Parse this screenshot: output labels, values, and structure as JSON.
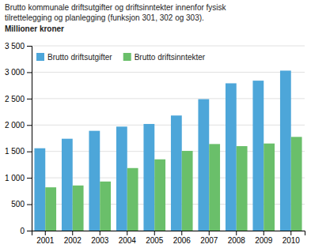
{
  "chart_data": {
    "type": "bar",
    "title": [
      "Brutto kommunale driftsutgifter og driftsinntekter innenfor fysisk",
      "tilrettelegging og planlegging (funksjon 301, 302 og 303)."
    ],
    "subtitle": "Millioner kroner",
    "categories": [
      "2001",
      "2002",
      "2003",
      "2004",
      "2005",
      "2006",
      "2007",
      "2008",
      "2009",
      "2010"
    ],
    "series": [
      {
        "name": "Brutto driftsutgifter",
        "color": "#4da6d9",
        "values": [
          1560,
          1740,
          1890,
          1970,
          2020,
          2180,
          2490,
          2790,
          2840,
          3030
        ]
      },
      {
        "name": "Brutto driftsinntekter",
        "color": "#6abf6a",
        "values": [
          820,
          855,
          930,
          1185,
          1350,
          1510,
          1640,
          1600,
          1650,
          1775
        ]
      }
    ],
    "ylim": [
      0,
      3500
    ],
    "yticks": [
      0,
      500,
      {
        "value": 1000,
        "label": "1 000"
      },
      {
        "value": 1500,
        "label": "1 500"
      },
      {
        "value": 2000,
        "label": "2 000"
      },
      {
        "value": 2500,
        "label": "2 500"
      },
      {
        "value": 3000,
        "label": "3 000"
      },
      {
        "value": 3500,
        "label": "3 500"
      }
    ],
    "grid": true,
    "legend": "upper left"
  }
}
